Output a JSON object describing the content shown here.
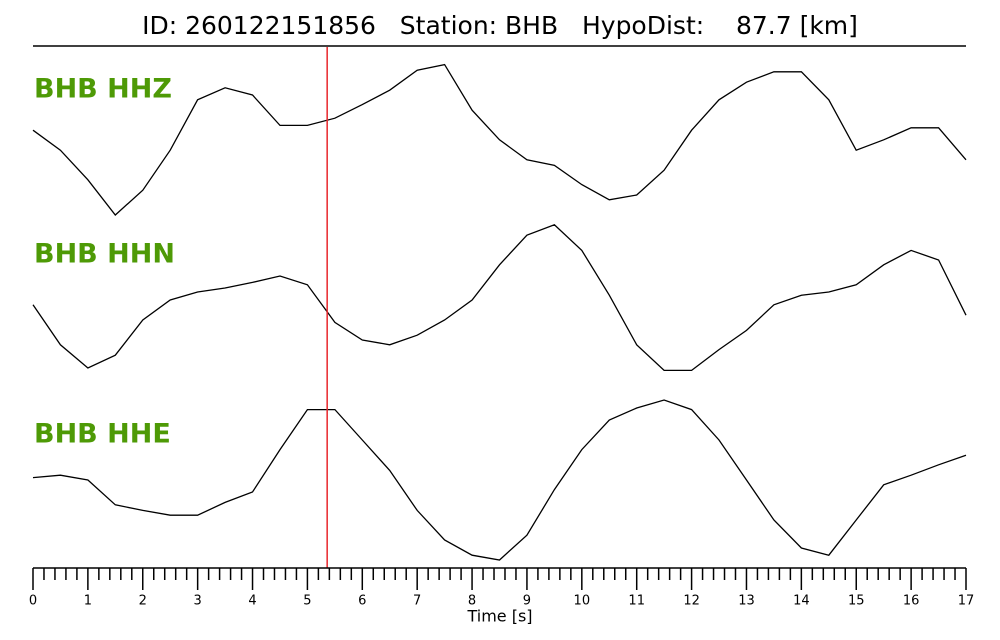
{
  "chart_data": {
    "type": "line",
    "title": "ID: 260122151856   Station: BHB   HypoDist:    87.7 [km]",
    "xlabel": "Time [s]",
    "x": [
      0,
      0.5,
      1,
      1.5,
      2,
      2.5,
      3,
      3.5,
      4,
      4.5,
      5,
      5.5,
      6,
      6.5,
      7,
      7.5,
      8,
      8.5,
      9,
      9.5,
      10,
      10.5,
      11,
      11.5,
      12,
      12.5,
      13,
      13.5,
      14,
      14.5,
      15,
      15.5,
      16,
      16.5,
      17
    ],
    "xlim": [
      0,
      17
    ],
    "xticks": [
      0,
      1,
      2,
      3,
      4,
      5,
      6,
      7,
      8,
      9,
      10,
      11,
      12,
      13,
      14,
      15,
      16,
      17
    ],
    "minor_ticks_per_major": 5,
    "ylim": [
      -1,
      1
    ],
    "label_color": "#4e9a06",
    "marker_x": 5.36,
    "marker_color": "#e8262b",
    "series": [
      {
        "name": "BHB HHZ",
        "color": "#000000",
        "values": [
          0.06,
          -0.19,
          -0.56,
          -1.0,
          -0.69,
          -0.19,
          0.44,
          0.59,
          0.5,
          0.12,
          0.12,
          0.21,
          0.38,
          0.56,
          0.81,
          0.88,
          0.31,
          -0.06,
          -0.31,
          -0.38,
          -0.62,
          -0.81,
          -0.75,
          -0.44,
          0.06,
          0.44,
          0.66,
          0.79,
          0.79,
          0.44,
          -0.19,
          -0.06,
          0.09,
          0.09,
          -0.31
        ]
      },
      {
        "name": "BHB HHN",
        "color": "#000000",
        "values": [
          -0.06,
          -0.56,
          -0.85,
          -0.69,
          -0.25,
          0,
          0.1,
          0.15,
          0.22,
          0.3,
          0.19,
          -0.28,
          -0.5,
          -0.56,
          -0.44,
          -0.25,
          0,
          0.44,
          0.81,
          0.94,
          0.62,
          0.06,
          -0.56,
          -0.88,
          -0.88,
          -0.62,
          -0.38,
          -0.06,
          0.06,
          0.1,
          0.19,
          0.44,
          0.62,
          0.5,
          -0.19
        ]
      },
      {
        "name": "BHB HHE",
        "color": "#000000",
        "values": [
          0.03,
          0.06,
          0,
          -0.31,
          -0.38,
          -0.44,
          -0.44,
          -0.28,
          -0.15,
          0.38,
          0.88,
          0.88,
          0.5,
          0.12,
          -0.38,
          -0.75,
          -0.94,
          -1.0,
          -0.69,
          -0.12,
          0.38,
          0.75,
          0.9,
          1.0,
          0.88,
          0.5,
          0,
          -0.5,
          -0.85,
          -0.94,
          -0.5,
          -0.06,
          0.06,
          0.19,
          0.31
        ]
      }
    ]
  }
}
